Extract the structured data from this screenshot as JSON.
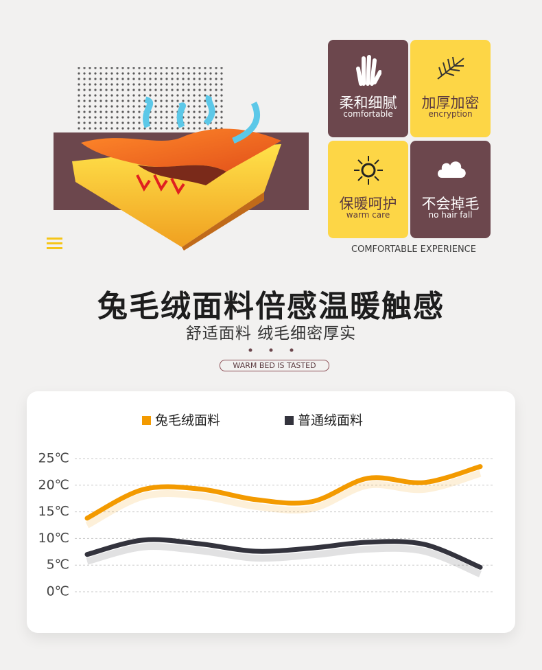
{
  "features": [
    {
      "title": "柔和细腻",
      "subtitle": "comfortable"
    },
    {
      "title": "加厚加密",
      "subtitle": "encryption"
    },
    {
      "title": "保暖呵护",
      "subtitle": "warm care"
    },
    {
      "title": "不会掉毛",
      "subtitle": "no hair fall"
    }
  ],
  "caption": "COMFORTABLE EXPERIENCE",
  "headline": "兔毛绒面料倍感温暖触感",
  "subheadline": "舒适面料  绒毛细密厚实",
  "tag": "WARM BED IS TASTED",
  "chart_data": {
    "type": "line",
    "categories": [
      null,
      null,
      null,
      null,
      null,
      null,
      null,
      null
    ],
    "series": [
      {
        "name": "兔毛绒面料",
        "color": "#f39a00",
        "values": [
          13.8,
          19.2,
          19.3,
          17.3,
          16.9,
          21.3,
          20.5,
          23.5
        ]
      },
      {
        "name": "普通绒面料",
        "color": "#33333d",
        "values": [
          7.0,
          9.7,
          9.0,
          7.6,
          8.2,
          9.3,
          8.9,
          4.6
        ]
      }
    ],
    "ylim": [
      0,
      25
    ],
    "yticks": [
      {
        "value": 0,
        "label": "0℃"
      },
      {
        "value": 5,
        "label": "5℃"
      },
      {
        "value": 10,
        "label": "10℃"
      },
      {
        "value": 15,
        "label": "15℃"
      },
      {
        "value": 20,
        "label": "20℃"
      },
      {
        "value": 25,
        "label": "25℃"
      }
    ],
    "grid": true
  }
}
